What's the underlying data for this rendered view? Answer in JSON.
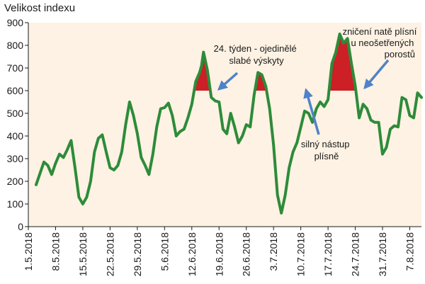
{
  "chart_data": {
    "type": "line",
    "title": "",
    "ylabel": "Velikost indexu",
    "xlabel": "",
    "ylim": [
      0,
      900
    ],
    "y_ticks": [
      0,
      100,
      200,
      300,
      400,
      500,
      600,
      700,
      800,
      900
    ],
    "x_tick_labels": [
      "1.5.2018",
      "8.5.2018",
      "15.5.2018",
      "22.5.2018",
      "29.5.2018",
      "5.6.2018",
      "12.6.2018",
      "19.6.2018",
      "26.6.2018",
      "3.7.2018",
      "10.7.2018",
      "17.7.2018",
      "24.7.2018",
      "31.7.2018",
      "7.8.2018"
    ],
    "x_day_range": [
      0,
      101
    ],
    "threshold": 600,
    "colors": {
      "plot_background": "#fdf2e3",
      "line": "#2e8b3a",
      "fill": "#cc1f26",
      "arrow": "#4f82c8",
      "axis": "#1a1a1a"
    },
    "series": [
      {
        "name": "Velikost indexu",
        "x": [
          2,
          4,
          5,
          6,
          7,
          8,
          9,
          10,
          11,
          12,
          13,
          14,
          15,
          16,
          17,
          18,
          19,
          20,
          21,
          22,
          23,
          24,
          25,
          26,
          27,
          28,
          29,
          30,
          31,
          32,
          33,
          34,
          35,
          36,
          37,
          38,
          39,
          40,
          41,
          42,
          43,
          44,
          44.5,
          45,
          46,
          47,
          48,
          49,
          50,
          51,
          52,
          53,
          54,
          55,
          56,
          57,
          58,
          59,
          60,
          61,
          62,
          63,
          64,
          65,
          66,
          67,
          68,
          69,
          70,
          71,
          72,
          73,
          74,
          75,
          76,
          77,
          78,
          79,
          80,
          81,
          82,
          83,
          84,
          85,
          86,
          87,
          88,
          89,
          90,
          91,
          92,
          93,
          94,
          95,
          96,
          97,
          98,
          99,
          100,
          101
        ],
        "y": [
          185,
          285,
          270,
          230,
          280,
          320,
          305,
          340,
          380,
          260,
          130,
          100,
          130,
          200,
          330,
          390,
          405,
          330,
          260,
          250,
          270,
          330,
          450,
          550,
          490,
          410,
          305,
          270,
          230,
          320,
          440,
          520,
          525,
          545,
          490,
          400,
          420,
          430,
          480,
          540,
          640,
          680,
          710,
          770,
          690,
          570,
          555,
          550,
          430,
          410,
          500,
          440,
          370,
          400,
          450,
          440,
          580,
          680,
          670,
          620,
          520,
          360,
          140,
          60,
          140,
          260,
          330,
          370,
          440,
          510,
          500,
          460,
          520,
          550,
          530,
          560,
          720,
          770,
          850,
          810,
          830,
          720,
          620,
          480,
          540,
          520,
          470,
          460,
          460,
          320,
          350,
          430,
          445,
          440,
          570,
          560,
          490,
          480,
          590,
          570
        ]
      }
    ],
    "annotations": [
      {
        "lines": [
          "24. týden - ojedinělé",
          "slabé výskyty"
        ]
      },
      {
        "lines": [
          "zničení natě plísní",
          "u neošetřených",
          "porostů"
        ]
      },
      {
        "lines": [
          "silný nástup",
          "plísně"
        ]
      }
    ]
  }
}
